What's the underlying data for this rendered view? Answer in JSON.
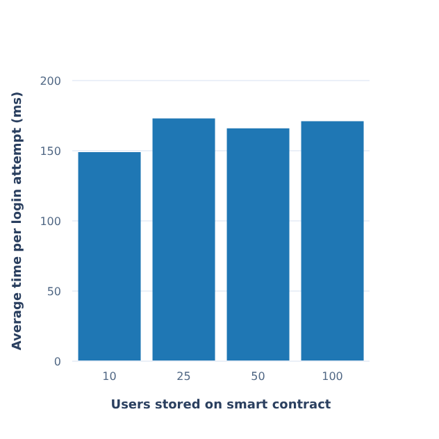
{
  "chart_data": {
    "type": "bar",
    "xlabel": "Users stored on smart contract",
    "ylabel": "Average time per login attempt (ms)",
    "categories": [
      "10",
      "25",
      "50",
      "100"
    ],
    "values": [
      149,
      173,
      166,
      171
    ],
    "color": "#1f77b4",
    "ylim": [
      0,
      200
    ],
    "yticks": [
      0,
      50,
      100,
      150,
      200
    ],
    "grid": "y"
  }
}
